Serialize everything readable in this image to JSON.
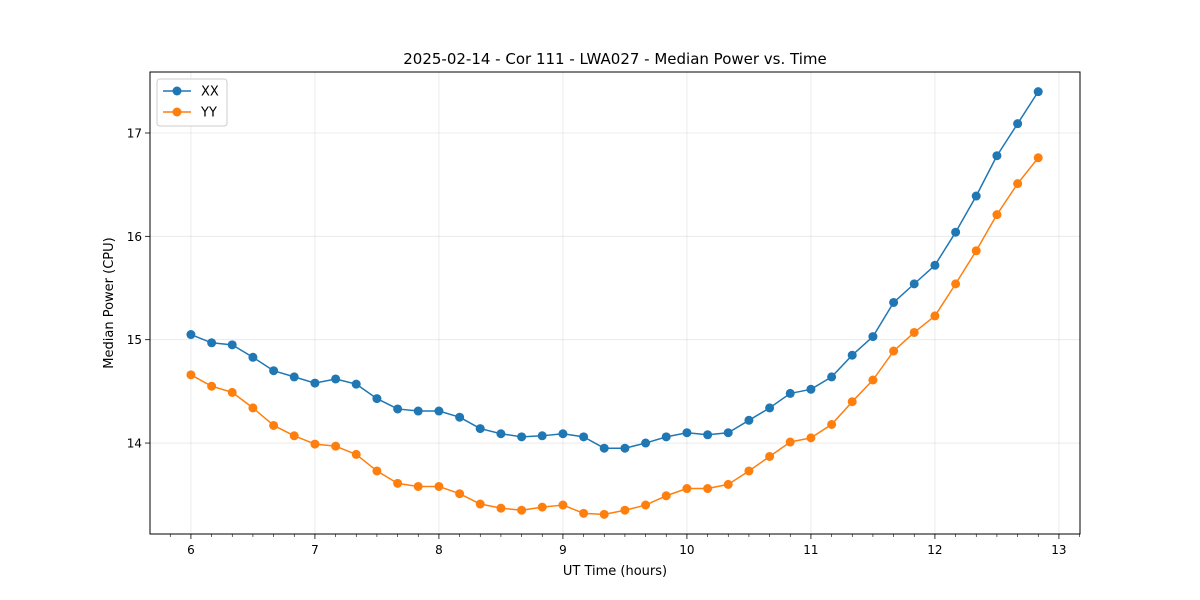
{
  "chart_data": {
    "type": "line",
    "title": "2025-02-14 - Cor 111 - LWA027 - Median Power vs. Time",
    "xlabel": "UT Time (hours)",
    "ylabel": "Median Power (CPU)",
    "xlim": [
      5.67,
      13.17
    ],
    "ylim": [
      13.12,
      17.59
    ],
    "xticks": [
      6,
      7,
      8,
      9,
      10,
      11,
      12,
      13
    ],
    "yticks": [
      14,
      15,
      16,
      17
    ],
    "grid": true,
    "legend_position": "top-left",
    "x": [
      6.0,
      6.167,
      6.333,
      6.5,
      6.667,
      6.833,
      7.0,
      7.167,
      7.333,
      7.5,
      7.667,
      7.833,
      8.0,
      8.167,
      8.333,
      8.5,
      8.667,
      8.833,
      9.0,
      9.167,
      9.333,
      9.5,
      9.667,
      9.833,
      10.0,
      10.167,
      10.333,
      10.5,
      10.667,
      10.833,
      11.0,
      11.167,
      11.333,
      11.5,
      11.667,
      11.833,
      12.0,
      12.167,
      12.333,
      12.5,
      12.667,
      12.833
    ],
    "series": [
      {
        "name": "XX",
        "color": "#1f77b4",
        "values": [
          15.05,
          14.97,
          14.95,
          14.83,
          14.7,
          14.64,
          14.58,
          14.62,
          14.57,
          14.43,
          14.33,
          14.31,
          14.31,
          14.25,
          14.14,
          14.09,
          14.06,
          14.07,
          14.09,
          14.06,
          13.95,
          13.95,
          14.0,
          14.06,
          14.1,
          14.08,
          14.1,
          14.22,
          14.34,
          14.48,
          14.52,
          14.64,
          14.85,
          15.03,
          15.36,
          15.54,
          15.72,
          16.04,
          16.39,
          16.78,
          17.09,
          17.4
        ]
      },
      {
        "name": "YY",
        "color": "#ff7f0e",
        "values": [
          14.66,
          14.55,
          14.49,
          14.34,
          14.17,
          14.07,
          13.99,
          13.97,
          13.89,
          13.73,
          13.61,
          13.58,
          13.58,
          13.51,
          13.41,
          13.37,
          13.35,
          13.38,
          13.4,
          13.32,
          13.31,
          13.35,
          13.4,
          13.49,
          13.56,
          13.56,
          13.6,
          13.73,
          13.87,
          14.01,
          14.05,
          14.18,
          14.4,
          14.61,
          14.89,
          15.07,
          15.23,
          15.54,
          15.86,
          16.21,
          16.51,
          16.76
        ]
      }
    ]
  }
}
